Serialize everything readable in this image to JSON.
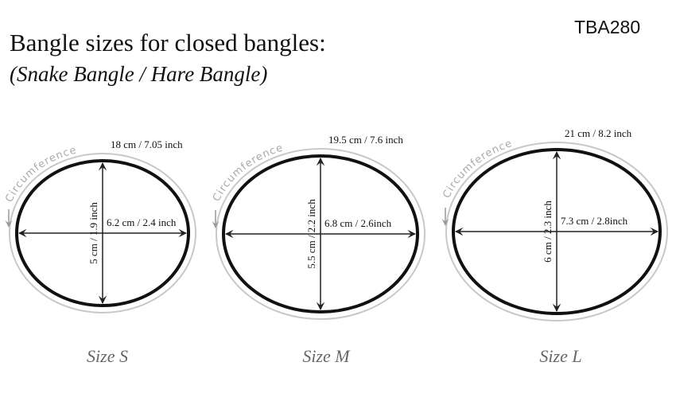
{
  "title": "Bangle sizes for closed bangles:",
  "subtitle": "(Snake Bangle / Hare Bangle)",
  "product_code": "TBA280",
  "circumference_label": "Circumference",
  "bangles": [
    {
      "size_label": "Size S",
      "circumference": "18 cm / 7.05 inch",
      "width": "6.2 cm / 2.4 inch",
      "height": "5 cm / 1.9 inch"
    },
    {
      "size_label": "Size M",
      "circumference": "19.5 cm / 7.6 inch",
      "width": "6.8 cm / 2.6inch",
      "height": "5.5 cm / 2.2 inch"
    },
    {
      "size_label": "Size L",
      "circumference": "21 cm / 8.2 inch",
      "width": "7.3 cm / 2.8inch",
      "height": "6 cm / 2.3 inch"
    }
  ]
}
